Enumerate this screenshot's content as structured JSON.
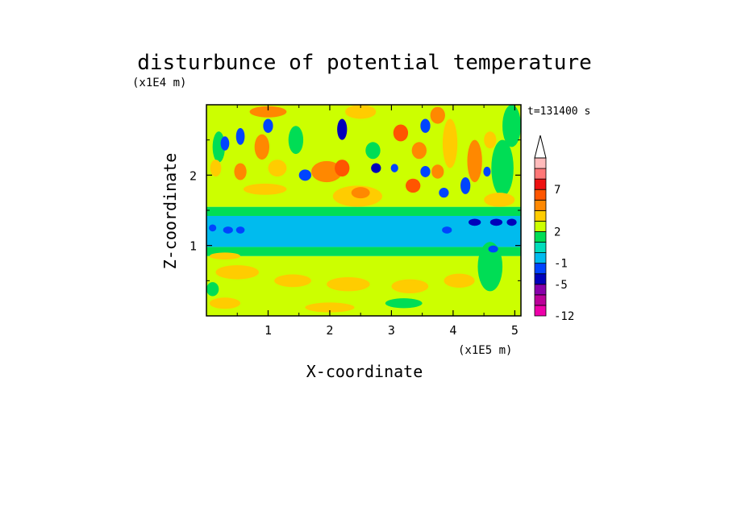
{
  "chart_data": {
    "type": "heatmap",
    "title": "disturbunce of potential temperature",
    "xlabel": "X-coordinate",
    "ylabel": "Z-coordinate",
    "x_unit": "(x1E5 m)",
    "y_unit": "(x1E4 m)",
    "time_label": "t=131400 s",
    "xlim": [
      0,
      5.1
    ],
    "ylim": [
      0,
      3.0
    ],
    "x_ticks": [
      {
        "v": 1,
        "label": "1"
      },
      {
        "v": 2,
        "label": "2"
      },
      {
        "v": 3,
        "label": "3"
      },
      {
        "v": 4,
        "label": "4"
      },
      {
        "v": 5,
        "label": "5"
      }
    ],
    "y_ticks": [
      {
        "v": 1,
        "label": "1"
      },
      {
        "v": 2,
        "label": "2"
      }
    ],
    "colorbar": {
      "bins": [
        {
          "color": "#ee00aa",
          "label": "-12"
        },
        {
          "color": "#bb0099",
          "label": ""
        },
        {
          "color": "#8800aa",
          "label": ""
        },
        {
          "color": "#0000bb",
          "label": "-5"
        },
        {
          "color": "#0044ff",
          "label": ""
        },
        {
          "color": "#00bbee",
          "label": "-1"
        },
        {
          "color": "#00ddbb",
          "label": ""
        },
        {
          "color": "#00dd55",
          "label": ""
        },
        {
          "color": "#ccff00",
          "label": "2"
        },
        {
          "color": "#ffcc00",
          "label": ""
        },
        {
          "color": "#ff8800",
          "label": ""
        },
        {
          "color": "#ff5500",
          "label": ""
        },
        {
          "color": "#ee1111",
          "label": "7"
        },
        {
          "color": "#ff7777",
          "label": ""
        },
        {
          "color": "#ffbbbb",
          "label": ""
        }
      ],
      "overflow_color": "#ffffff"
    },
    "bands": [
      {
        "name": "surface",
        "z": [
          0.0,
          0.85
        ],
        "color": "#ccff00"
      },
      {
        "name": "lower-transition",
        "z": [
          0.85,
          0.98
        ],
        "color": "#00dd55"
      },
      {
        "name": "mid",
        "z": [
          0.98,
          1.42
        ],
        "color": "#00bbee"
      },
      {
        "name": "mid-upper-transition",
        "z": [
          1.42,
          1.55
        ],
        "color": "#00dd55"
      },
      {
        "name": "upper",
        "z": [
          1.55,
          3.0
        ],
        "color": "#ccff00"
      }
    ],
    "blobs": [
      {
        "x": 0.1,
        "z": 1.25,
        "rx": 0.06,
        "rz": 0.05,
        "color": "#0044ff"
      },
      {
        "x": 0.35,
        "z": 1.22,
        "rx": 0.08,
        "rz": 0.05,
        "color": "#0044ff"
      },
      {
        "x": 0.55,
        "z": 1.22,
        "rx": 0.07,
        "rz": 0.05,
        "color": "#0044ff"
      },
      {
        "x": 3.9,
        "z": 1.22,
        "rx": 0.08,
        "rz": 0.05,
        "color": "#0044ff"
      },
      {
        "x": 4.35,
        "z": 1.33,
        "rx": 0.1,
        "rz": 0.05,
        "color": "#0000bb"
      },
      {
        "x": 4.7,
        "z": 1.33,
        "rx": 0.1,
        "rz": 0.05,
        "color": "#0000bb"
      },
      {
        "x": 4.95,
        "z": 1.33,
        "rx": 0.08,
        "rz": 0.05,
        "color": "#0000bb"
      },
      {
        "x": 0.5,
        "z": 0.62,
        "rx": 0.35,
        "rz": 0.1,
        "color": "#ffcc00"
      },
      {
        "x": 1.4,
        "z": 0.5,
        "rx": 0.3,
        "rz": 0.09,
        "color": "#ffcc00"
      },
      {
        "x": 2.3,
        "z": 0.45,
        "rx": 0.35,
        "rz": 0.1,
        "color": "#ffcc00"
      },
      {
        "x": 3.3,
        "z": 0.42,
        "rx": 0.3,
        "rz": 0.1,
        "color": "#ffcc00"
      },
      {
        "x": 4.1,
        "z": 0.5,
        "rx": 0.25,
        "rz": 0.1,
        "color": "#ffcc00"
      },
      {
        "x": 0.3,
        "z": 0.18,
        "rx": 0.25,
        "rz": 0.08,
        "color": "#ffcc00"
      },
      {
        "x": 2.0,
        "z": 0.12,
        "rx": 0.4,
        "rz": 0.07,
        "color": "#ffcc00"
      },
      {
        "x": 3.2,
        "z": 0.18,
        "rx": 0.3,
        "rz": 0.07,
        "color": "#00dd55"
      },
      {
        "x": 0.1,
        "z": 0.38,
        "rx": 0.1,
        "rz": 0.1,
        "color": "#00dd55"
      },
      {
        "x": 0.3,
        "z": 0.85,
        "rx": 0.25,
        "rz": 0.05,
        "color": "#ffcc00"
      },
      {
        "x": 0.2,
        "z": 2.4,
        "rx": 0.1,
        "rz": 0.22,
        "color": "#00dd55"
      },
      {
        "x": 0.3,
        "z": 2.45,
        "rx": 0.07,
        "rz": 0.1,
        "color": "#0044ff"
      },
      {
        "x": 0.55,
        "z": 2.55,
        "rx": 0.07,
        "rz": 0.12,
        "color": "#0044ff"
      },
      {
        "x": 0.15,
        "z": 2.1,
        "rx": 0.09,
        "rz": 0.12,
        "color": "#ffcc00"
      },
      {
        "x": 0.55,
        "z": 2.05,
        "rx": 0.1,
        "rz": 0.12,
        "color": "#ff8800"
      },
      {
        "x": 0.9,
        "z": 2.4,
        "rx": 0.12,
        "rz": 0.18,
        "color": "#ff8800"
      },
      {
        "x": 1.0,
        "z": 2.7,
        "rx": 0.08,
        "rz": 0.1,
        "color": "#0044ff"
      },
      {
        "x": 1.15,
        "z": 2.1,
        "rx": 0.15,
        "rz": 0.12,
        "color": "#ffcc00"
      },
      {
        "x": 1.45,
        "z": 2.5,
        "rx": 0.12,
        "rz": 0.2,
        "color": "#00dd55"
      },
      {
        "x": 0.95,
        "z": 1.8,
        "rx": 0.35,
        "rz": 0.08,
        "color": "#ffcc00"
      },
      {
        "x": 1.0,
        "z": 2.9,
        "rx": 0.3,
        "rz": 0.08,
        "color": "#ff8800"
      },
      {
        "x": 1.6,
        "z": 2.0,
        "rx": 0.1,
        "rz": 0.08,
        "color": "#0044ff"
      },
      {
        "x": 1.95,
        "z": 2.05,
        "rx": 0.25,
        "rz": 0.15,
        "color": "#ff8800"
      },
      {
        "x": 2.2,
        "z": 2.1,
        "rx": 0.12,
        "rz": 0.12,
        "color": "#ff5500"
      },
      {
        "x": 2.2,
        "z": 2.65,
        "rx": 0.08,
        "rz": 0.15,
        "color": "#0000bb"
      },
      {
        "x": 2.5,
        "z": 2.9,
        "rx": 0.25,
        "rz": 0.1,
        "color": "#ffcc00"
      },
      {
        "x": 2.7,
        "z": 2.35,
        "rx": 0.12,
        "rz": 0.12,
        "color": "#00dd55"
      },
      {
        "x": 2.45,
        "z": 1.7,
        "rx": 0.4,
        "rz": 0.15,
        "color": "#ffcc00"
      },
      {
        "x": 2.5,
        "z": 1.75,
        "rx": 0.15,
        "rz": 0.08,
        "color": "#ff8800"
      },
      {
        "x": 2.75,
        "z": 2.1,
        "rx": 0.08,
        "rz": 0.07,
        "color": "#0000bb"
      },
      {
        "x": 3.05,
        "z": 2.1,
        "rx": 0.06,
        "rz": 0.06,
        "color": "#0044ff"
      },
      {
        "x": 3.15,
        "z": 2.6,
        "rx": 0.12,
        "rz": 0.12,
        "color": "#ff5500"
      },
      {
        "x": 3.35,
        "z": 1.85,
        "rx": 0.12,
        "rz": 0.1,
        "color": "#ff5500"
      },
      {
        "x": 3.55,
        "z": 2.05,
        "rx": 0.08,
        "rz": 0.08,
        "color": "#0044ff"
      },
      {
        "x": 3.45,
        "z": 2.35,
        "rx": 0.12,
        "rz": 0.12,
        "color": "#ff8800"
      },
      {
        "x": 3.55,
        "z": 2.7,
        "rx": 0.08,
        "rz": 0.1,
        "color": "#0044ff"
      },
      {
        "x": 3.75,
        "z": 2.05,
        "rx": 0.1,
        "rz": 0.1,
        "color": "#ff8800"
      },
      {
        "x": 3.85,
        "z": 1.75,
        "rx": 0.08,
        "rz": 0.07,
        "color": "#0044ff"
      },
      {
        "x": 3.95,
        "z": 2.45,
        "rx": 0.12,
        "rz": 0.35,
        "color": "#ffcc00"
      },
      {
        "x": 3.75,
        "z": 2.85,
        "rx": 0.12,
        "rz": 0.12,
        "color": "#ff8800"
      },
      {
        "x": 4.2,
        "z": 1.85,
        "rx": 0.08,
        "rz": 0.12,
        "color": "#0044ff"
      },
      {
        "x": 4.35,
        "z": 2.2,
        "rx": 0.12,
        "rz": 0.3,
        "color": "#ff8800"
      },
      {
        "x": 4.55,
        "z": 2.05,
        "rx": 0.06,
        "rz": 0.07,
        "color": "#0044ff"
      },
      {
        "x": 4.6,
        "z": 2.5,
        "rx": 0.1,
        "rz": 0.12,
        "color": "#ffcc00"
      },
      {
        "x": 4.8,
        "z": 2.1,
        "rx": 0.18,
        "rz": 0.4,
        "color": "#00dd55"
      },
      {
        "x": 4.95,
        "z": 2.7,
        "rx": 0.15,
        "rz": 0.3,
        "color": "#00dd55"
      },
      {
        "x": 4.75,
        "z": 1.65,
        "rx": 0.25,
        "rz": 0.1,
        "color": "#ffcc00"
      },
      {
        "x": 4.6,
        "z": 0.7,
        "rx": 0.2,
        "rz": 0.35,
        "color": "#00dd55"
      },
      {
        "x": 4.65,
        "z": 0.95,
        "rx": 0.08,
        "rz": 0.05,
        "color": "#0044ff"
      }
    ]
  }
}
